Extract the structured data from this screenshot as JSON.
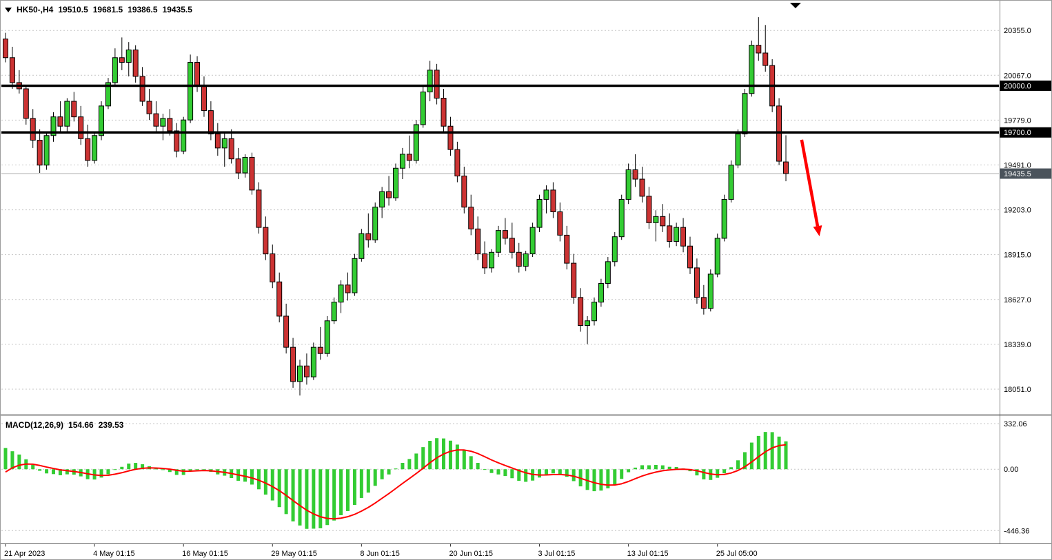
{
  "header": {
    "symbol_period": "HK50-,H4",
    "open": "19510.5",
    "high": "19681.5",
    "low": "19386.5",
    "close": "19435.5"
  },
  "macd": {
    "label": "MACD(12,26,9)",
    "main_value": "154.66",
    "signal_value": "239.53"
  },
  "colors": {
    "background": "#FFFFFF",
    "text": "#000000",
    "grid": "#C6C6C6",
    "bull": "#33CC33",
    "bear": "#CC3333",
    "wick": "#000000",
    "sr_line": "#000000",
    "sr_box_bg": "#000000",
    "sr_box_text": "#FFFFFF",
    "price_line": "#AFAFAF",
    "price_box_bg": "#4A535B",
    "macd_hist": "#33CC33",
    "macd_signal": "#FF0000",
    "arrow": "#FF0000",
    "separator": "#5A5A5A",
    "border": "#9B9B9B"
  },
  "chart_data": [
    {
      "type": "candlestick",
      "symbol": "HK50-",
      "timeframe": "H4",
      "grid": true,
      "x_labels": [
        "21 Apr 2023",
        "4 May 01:15",
        "16 May 01:15",
        "29 May 01:15",
        "8 Jun 01:15",
        "20 Jun 01:15",
        "3 Jul 01:15",
        "13 Jul 01:15",
        "25 Jul 05:00"
      ],
      "x_label_indices": [
        0,
        13,
        26,
        39,
        52,
        65,
        78,
        91,
        104
      ],
      "y_ticks": [
        20355,
        20067,
        19779,
        19491,
        19203,
        18915,
        18627,
        18339,
        18051
      ],
      "y_tick_labels": [
        "20355.0",
        "20067.0",
        "19779.0",
        "19491.0",
        "19203.0",
        "18915.0",
        "18627.0",
        "18339.0",
        "18051.0"
      ],
      "ylim": [
        17896,
        20524
      ],
      "hlines": [
        {
          "value": 20000.0,
          "label": "20000.0"
        },
        {
          "value": 19700.0,
          "label": "19700.0"
        }
      ],
      "last_price": {
        "value": 19435.5,
        "label": "19435.5"
      },
      "candles_ohlc": [
        [
          20300,
          20340,
          20150,
          20180
        ],
        [
          20180,
          20250,
          19980,
          20020
        ],
        [
          20020,
          20100,
          19950,
          19980
        ],
        [
          19980,
          20000,
          19750,
          19790
        ],
        [
          19790,
          19850,
          19600,
          19650
        ],
        [
          19650,
          19720,
          19440,
          19490
        ],
        [
          19490,
          19700,
          19460,
          19680
        ],
        [
          19680,
          19830,
          19640,
          19800
        ],
        [
          19800,
          19900,
          19700,
          19740
        ],
        [
          19740,
          19920,
          19700,
          19900
        ],
        [
          19900,
          19960,
          19770,
          19800
        ],
        [
          19800,
          19870,
          19620,
          19660
        ],
        [
          19660,
          19750,
          19480,
          19520
        ],
        [
          19520,
          19700,
          19500,
          19680
        ],
        [
          19680,
          19900,
          19650,
          19870
        ],
        [
          19870,
          20050,
          19850,
          20020
        ],
        [
          20020,
          20240,
          20000,
          20180
        ],
        [
          20180,
          20310,
          20100,
          20150
        ],
        [
          20150,
          20280,
          20060,
          20230
        ],
        [
          20230,
          20260,
          20020,
          20060
        ],
        [
          20060,
          20120,
          19870,
          19900
        ],
        [
          19900,
          19980,
          19780,
          19820
        ],
        [
          19820,
          19900,
          19700,
          19740
        ],
        [
          19740,
          19820,
          19650,
          19790
        ],
        [
          19790,
          19850,
          19680,
          19710
        ],
        [
          19710,
          19760,
          19540,
          19580
        ],
        [
          19580,
          19800,
          19560,
          19780
        ],
        [
          19780,
          20200,
          19760,
          20150
        ],
        [
          20150,
          20190,
          19960,
          20000
        ],
        [
          20000,
          20060,
          19800,
          19840
        ],
        [
          19840,
          19900,
          19650,
          19690
        ],
        [
          19690,
          19760,
          19550,
          19600
        ],
        [
          19600,
          19700,
          19480,
          19660
        ],
        [
          19660,
          19720,
          19500,
          19530
        ],
        [
          19530,
          19600,
          19400,
          19440
        ],
        [
          19440,
          19560,
          19410,
          19540
        ],
        [
          19540,
          19570,
          19300,
          19330
        ],
        [
          19330,
          19380,
          19050,
          19090
        ],
        [
          19090,
          19160,
          18880,
          18920
        ],
        [
          18920,
          18980,
          18700,
          18740
        ],
        [
          18740,
          18800,
          18480,
          18520
        ],
        [
          18520,
          18600,
          18280,
          18320
        ],
        [
          18320,
          18380,
          18060,
          18100
        ],
        [
          18100,
          18240,
          18010,
          18200
        ],
        [
          18200,
          18280,
          18080,
          18130
        ],
        [
          18130,
          18350,
          18110,
          18320
        ],
        [
          18320,
          18450,
          18240,
          18280
        ],
        [
          18280,
          18520,
          18260,
          18490
        ],
        [
          18490,
          18640,
          18470,
          18610
        ],
        [
          18610,
          18750,
          18540,
          18720
        ],
        [
          18720,
          18800,
          18620,
          18670
        ],
        [
          18670,
          18920,
          18650,
          18890
        ],
        [
          18890,
          19080,
          18870,
          19050
        ],
        [
          19050,
          19180,
          18960,
          19010
        ],
        [
          19010,
          19250,
          18990,
          19220
        ],
        [
          19220,
          19350,
          19150,
          19320
        ],
        [
          19320,
          19420,
          19230,
          19280
        ],
        [
          19280,
          19500,
          19260,
          19470
        ],
        [
          19470,
          19600,
          19400,
          19560
        ],
        [
          19560,
          19680,
          19470,
          19520
        ],
        [
          19520,
          19780,
          19500,
          19750
        ],
        [
          19750,
          20000,
          19730,
          19960
        ],
        [
          19960,
          20160,
          19900,
          20100
        ],
        [
          20100,
          20140,
          19880,
          19920
        ],
        [
          19920,
          19980,
          19700,
          19740
        ],
        [
          19740,
          19800,
          19550,
          19590
        ],
        [
          19590,
          19640,
          19380,
          19420
        ],
        [
          19420,
          19480,
          19180,
          19220
        ],
        [
          19220,
          19300,
          19040,
          19080
        ],
        [
          19080,
          19160,
          18880,
          18920
        ],
        [
          18920,
          19000,
          18790,
          18830
        ],
        [
          18830,
          18950,
          18800,
          18930
        ],
        [
          18930,
          19100,
          18900,
          19070
        ],
        [
          19070,
          19150,
          18980,
          19020
        ],
        [
          19020,
          19120,
          18890,
          18930
        ],
        [
          18930,
          18990,
          18800,
          18840
        ],
        [
          18840,
          18940,
          18810,
          18920
        ],
        [
          18920,
          19120,
          18900,
          19090
        ],
        [
          19090,
          19300,
          19060,
          19270
        ],
        [
          19270,
          19360,
          19180,
          19330
        ],
        [
          19330,
          19380,
          19150,
          19190
        ],
        [
          19190,
          19250,
          19000,
          19040
        ],
        [
          19040,
          19100,
          18820,
          18860
        ],
        [
          18860,
          18920,
          18600,
          18640
        ],
        [
          18640,
          18700,
          18420,
          18460
        ],
        [
          18460,
          18520,
          18340,
          18490
        ],
        [
          18490,
          18640,
          18460,
          18610
        ],
        [
          18610,
          18760,
          18580,
          18730
        ],
        [
          18730,
          18900,
          18700,
          18870
        ],
        [
          18870,
          19060,
          18840,
          19030
        ],
        [
          19030,
          19300,
          19010,
          19270
        ],
        [
          19270,
          19500,
          19240,
          19460
        ],
        [
          19460,
          19560,
          19350,
          19400
        ],
        [
          19400,
          19480,
          19250,
          19290
        ],
        [
          19290,
          19350,
          19080,
          19120
        ],
        [
          19120,
          19200,
          19000,
          19160
        ],
        [
          19160,
          19240,
          19060,
          19100
        ],
        [
          19100,
          19180,
          18960,
          19000
        ],
        [
          19000,
          19120,
          18970,
          19090
        ],
        [
          19090,
          19150,
          18930,
          18970
        ],
        [
          18970,
          19030,
          18790,
          18830
        ],
        [
          18830,
          18890,
          18600,
          18640
        ],
        [
          18640,
          18720,
          18530,
          18570
        ],
        [
          18570,
          18820,
          18550,
          18790
        ],
        [
          18790,
          19050,
          18770,
          19020
        ],
        [
          19020,
          19300,
          19000,
          19270
        ],
        [
          19270,
          19520,
          19250,
          19490
        ],
        [
          19490,
          19720,
          19470,
          19690
        ],
        [
          19690,
          19980,
          19670,
          19950
        ],
        [
          19950,
          20290,
          19930,
          20260
        ],
        [
          20260,
          20440,
          20160,
          20210
        ],
        [
          20210,
          20390,
          20090,
          20130
        ],
        [
          20130,
          20170,
          19830,
          19870
        ],
        [
          19870,
          19920,
          19490,
          19515
        ],
        [
          19510.5,
          19681.5,
          19386.5,
          19435.5
        ]
      ]
    },
    {
      "type": "macd",
      "params": [
        12,
        26,
        9
      ],
      "last_values": [
        154.66,
        239.53
      ],
      "y_ticks": [
        332.06,
        0,
        -446.36
      ],
      "y_tick_labels": [
        "332.06",
        "0.00",
        "-446.36"
      ],
      "ylim": [
        -530,
        382
      ]
    }
  ],
  "annotations": {
    "arrow": {
      "from": {
        "index": 116.3,
        "price": 19653
      },
      "to": {
        "index": 118.9,
        "price": 19033
      }
    }
  }
}
